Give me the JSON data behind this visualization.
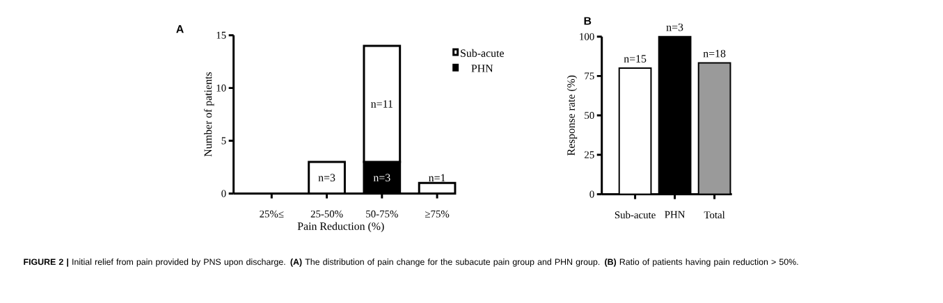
{
  "chart_data": [
    {
      "type": "bar",
      "title": "A",
      "xlabel": "Pain Reduction (%)",
      "ylabel": "Number of patients",
      "categories": [
        "25%≤",
        "25-50%",
        "50-75%",
        "≥75%"
      ],
      "stacked": true,
      "series": [
        {
          "name": "PHN",
          "color": "#000000",
          "values": [
            0,
            0,
            3,
            0
          ],
          "value_labels": [
            null,
            null,
            "n=3",
            null
          ]
        },
        {
          "name": "Sub-acute",
          "color": "#ffffff",
          "values": [
            0,
            3,
            11,
            1
          ],
          "value_labels": [
            null,
            "n=3",
            "n=11",
            "n=1"
          ]
        }
      ],
      "ylim": [
        0,
        15
      ],
      "yticks": [
        0,
        5,
        10,
        15
      ],
      "legend": "top right",
      "annotations": [
        "**FIGURE 2 |** Initial relief from pain provided by PNS upon discharge. **(A)** The distribution of pain change for the subacute pain group and PHN group. **(B)** Ratio of patients having pain reduction > 50%."
      ]
    },
    {
      "type": "bar",
      "title": "B",
      "ylabel": "Response rate (%)",
      "categories": [
        "Sub-acute",
        "PHN",
        "Total"
      ],
      "values": [
        80,
        100,
        83.3
      ],
      "colors": [
        "#ffffff",
        "#000000",
        "#9a9a9a"
      ],
      "annotations": [
        {
          "text": "n=15",
          "x": "Sub-acute",
          "y": 80
        },
        {
          "text": "n=3",
          "x": "PHN",
          "y": 100
        },
        {
          "text": "n=18",
          "x": "Total",
          "y": 83.3
        }
      ],
      "ylim": [
        0,
        100
      ],
      "yticks": [
        0,
        25,
        50,
        75,
        100
      ]
    }
  ]
}
